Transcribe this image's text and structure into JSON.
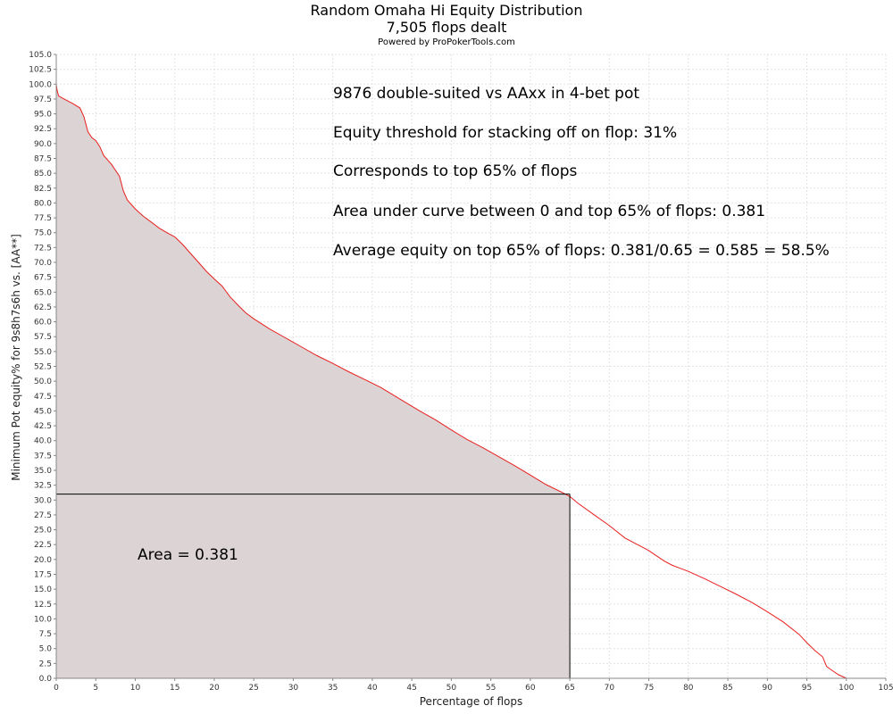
{
  "chart_data": {
    "type": "area",
    "title": "Random Omaha Hi Equity Distribution",
    "subtitle": "7,505 flops dealt",
    "credit": "Powered by ProPokerTools.com",
    "xlabel": "Percentage of flops",
    "ylabel": "Minimum Pot equity% for 9s8h7s6h vs. [AA**]",
    "xlim": [
      0,
      105
    ],
    "ylim": [
      0,
      105
    ],
    "x_ticks": [
      0,
      5,
      10,
      15,
      20,
      25,
      30,
      35,
      40,
      45,
      50,
      55,
      60,
      65,
      70,
      75,
      80,
      85,
      90,
      95,
      100,
      105
    ],
    "y_ticks": [
      0,
      2.5,
      5,
      7.5,
      10,
      12.5,
      15,
      17.5,
      20,
      22.5,
      25,
      27.5,
      30,
      32.5,
      35,
      37.5,
      40,
      42.5,
      45,
      47.5,
      50,
      52.5,
      55,
      57.5,
      60,
      62.5,
      65,
      67.5,
      70,
      72.5,
      75,
      77.5,
      80,
      82.5,
      85,
      87.5,
      90,
      92.5,
      95,
      97.5,
      100,
      102.5,
      105
    ],
    "grid": true,
    "series": [
      {
        "color": "#e8201e",
        "fill": "#dcd3d5",
        "x": [
          0,
          0.1,
          0.3,
          1,
          2,
          3,
          3.5,
          4,
          4.5,
          5,
          5.5,
          6,
          7,
          8,
          8.5,
          9,
          10,
          11,
          12,
          13,
          14,
          15,
          16,
          17,
          18,
          19,
          20,
          21,
          22,
          23,
          24,
          25,
          27,
          29,
          31,
          33,
          35,
          37,
          39,
          41,
          42,
          44,
          46,
          48,
          50,
          52,
          54,
          56,
          58,
          60,
          62,
          64,
          65,
          66,
          68,
          70,
          72,
          74,
          75,
          76,
          77,
          78,
          80,
          82,
          84,
          86,
          88,
          90,
          92,
          94,
          95,
          96,
          97,
          97.5,
          98,
          99,
          100
        ],
        "y": [
          100,
          99,
          98,
          97.5,
          96.8,
          96,
          94.5,
          92,
          91,
          90.5,
          89.5,
          88,
          86.5,
          84.5,
          82,
          80.5,
          79,
          77.8,
          76.8,
          75.8,
          75,
          74.3,
          73,
          71.5,
          70,
          68.5,
          67.2,
          66,
          64.2,
          62.8,
          61.5,
          60.5,
          58.8,
          57.3,
          55.8,
          54.3,
          53,
          51.6,
          50.3,
          49,
          48.2,
          46.6,
          45,
          43.5,
          41.8,
          40.2,
          38.8,
          37.3,
          35.8,
          34.2,
          32.6,
          31.3,
          30.6,
          29.5,
          27.6,
          25.7,
          23.6,
          22.2,
          21.5,
          20.6,
          19.7,
          19,
          18,
          16.8,
          15.5,
          14.2,
          12.8,
          11.2,
          9.5,
          7.4,
          6,
          4.7,
          3.6,
          2,
          1.5,
          0.6,
          0
        ]
      }
    ],
    "threshold": {
      "x": 65,
      "y": 31
    },
    "annotations": {
      "line1": "9876 double-suited vs AAxx in 4-bet pot",
      "line2": "Equity threshold for stacking off on flop: 31%",
      "line3": "Corresponds to top 65% of flops",
      "line4": "Area under curve between 0 and top 65% of flops: 0.381",
      "line5": "Average equity on top 65% of flops: 0.381/0.65 = 0.585 = 58.5%",
      "area_label": "Area = 0.381"
    }
  }
}
